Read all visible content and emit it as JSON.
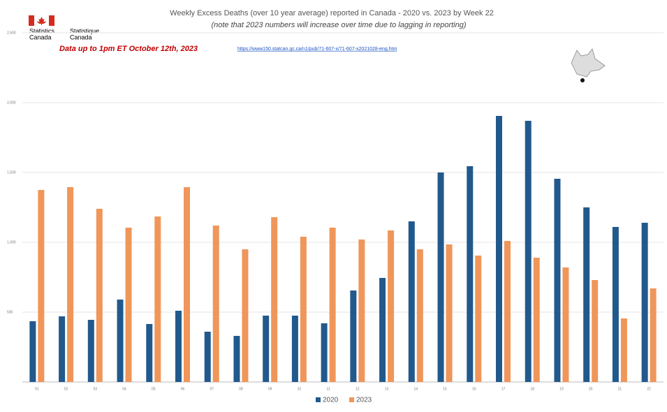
{
  "chart_data": {
    "type": "bar",
    "title": "Weekly Excess Deaths (over 10 year average) reported in Canada - 2020 vs. 2023 by Week 22",
    "subtitle": "(note that 2023 numbers will increase over time due to lagging in reporting)",
    "annotation": "Data up to 1pm ET October 12th, 2023",
    "source_url": "https://www150.statcan.gc.ca/n1/pub/71-607-x/71-607-x2021028-eng.htm",
    "logo_text": [
      "Statistics",
      "Statistique",
      "Canada",
      "Canada"
    ],
    "categories": [
      "01",
      "02",
      "03",
      "04",
      "05",
      "06",
      "07",
      "08",
      "09",
      "10",
      "11",
      "12",
      "13",
      "14",
      "15",
      "16",
      "17",
      "18",
      "19",
      "20",
      "21",
      "22"
    ],
    "series": [
      {
        "name": "2020",
        "color": "#22598c",
        "values": [
          435,
          470,
          445,
          590,
          415,
          510,
          360,
          330,
          475,
          475,
          420,
          655,
          745,
          1150,
          1500,
          1545,
          1905,
          1870,
          1455,
          1250,
          1110,
          1140
        ]
      },
      {
        "name": "2023",
        "color": "#f0965a",
        "values": [
          1375,
          1395,
          1240,
          1105,
          1185,
          1395,
          1120,
          950,
          1180,
          1040,
          1105,
          1020,
          1085,
          950,
          985,
          905,
          1010,
          890,
          820,
          730,
          455,
          670
        ]
      }
    ],
    "ylim": [
      0,
      2500
    ],
    "yticks": [
      {
        "value": 500,
        "label": "500"
      },
      {
        "value": 1000,
        "label": "1,000"
      },
      {
        "value": 1500,
        "label": "1,500"
      },
      {
        "value": 2000,
        "label": "2,000"
      },
      {
        "value": 2500,
        "label": "2,500"
      }
    ],
    "grid": true,
    "legend": "bottom"
  }
}
